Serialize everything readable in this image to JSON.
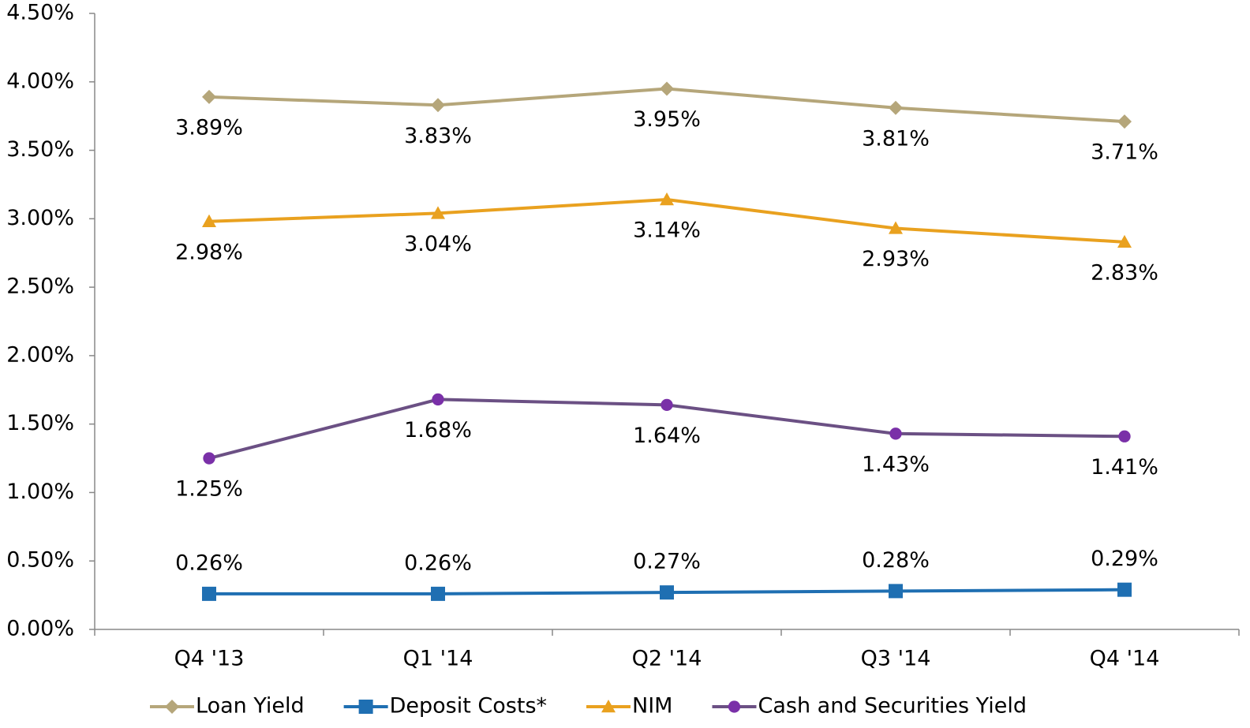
{
  "chart_data": {
    "type": "line",
    "categories": [
      "Q4 '13",
      "Q1 '14",
      "Q2 '14",
      "Q3 '14",
      "Q4 '14"
    ],
    "series": [
      {
        "name": "Loan Yield",
        "color": "#b5a67a",
        "marker": "diamond",
        "values": [
          3.89,
          3.83,
          3.95,
          3.81,
          3.71
        ],
        "value_labels": [
          "3.89%",
          "3.83%",
          "3.95%",
          "3.81%",
          "3.71%"
        ]
      },
      {
        "name": "Deposit Costs*",
        "color": "#1f6fb2",
        "marker": "square",
        "values": [
          0.26,
          0.26,
          0.27,
          0.28,
          0.29
        ],
        "value_labels": [
          "0.26%",
          "0.26%",
          "0.27%",
          "0.28%",
          "0.29%"
        ]
      },
      {
        "name": "NIM",
        "color": "#e9a11f",
        "marker": "triangle",
        "values": [
          2.98,
          3.04,
          3.14,
          2.93,
          2.83
        ],
        "value_labels": [
          "2.98%",
          "3.04%",
          "3.14%",
          "2.93%",
          "2.83%"
        ]
      },
      {
        "name": "Cash and Securities Yield",
        "color": "#6b5084",
        "marker_color": "#7a30a8",
        "marker": "circle",
        "values": [
          1.25,
          1.68,
          1.64,
          1.43,
          1.41
        ],
        "value_labels": [
          "1.25%",
          "1.68%",
          "1.64%",
          "1.43%",
          "1.41%"
        ]
      }
    ],
    "ylim": [
      0,
      4.5
    ],
    "yticks": [
      {
        "value": 0,
        "label": "0.00%"
      },
      {
        "value": 0.5,
        "label": "0.50%"
      },
      {
        "value": 1,
        "label": "1.00%"
      },
      {
        "value": 1.5,
        "label": "1.50%"
      },
      {
        "value": 2,
        "label": "2.00%"
      },
      {
        "value": 2.5,
        "label": "2.50%"
      },
      {
        "value": 3,
        "label": "3.00%"
      },
      {
        "value": 3.5,
        "label": "3.50%"
      },
      {
        "value": 4,
        "label": "4.00%"
      },
      {
        "value": 4.5,
        "label": "4.50%"
      }
    ],
    "legend": "bottom"
  }
}
